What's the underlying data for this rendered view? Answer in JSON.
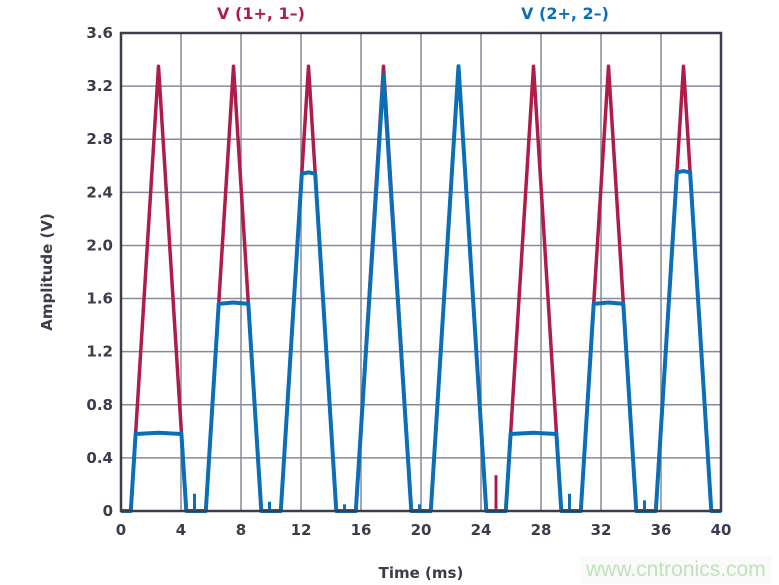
{
  "chart_data": {
    "type": "line",
    "title": "",
    "xlabel": "Time (ms)",
    "ylabel": "Amplitude (V)",
    "xlim": [
      0,
      40
    ],
    "ylim": [
      0,
      3.6
    ],
    "xticks": [
      "0",
      "4",
      "8",
      "12",
      "16",
      "20",
      "24",
      "28",
      "32",
      "36",
      "40"
    ],
    "yticks": [
      "0",
      "0.4",
      "0.8",
      "1.2",
      "1.6",
      "2.0",
      "2.4",
      "2.8",
      "3.2",
      "3.6"
    ],
    "grid": true,
    "legend_placement": "top",
    "pulse_half_width_ms": 1.85,
    "series": [
      {
        "name": "V (1+, 1–)",
        "color": "#b01c4a",
        "pulses": [
          {
            "peak_time": 2.5,
            "peak": 3.35
          },
          {
            "peak_time": 7.5,
            "peak": 3.35
          },
          {
            "peak_time": 12.5,
            "peak": 3.35
          },
          {
            "peak_time": 17.5,
            "peak": 3.35
          },
          {
            "peak_time": 22.5,
            "peak": 3.35
          },
          {
            "peak_time": 27.5,
            "peak": 3.35
          },
          {
            "peak_time": 32.5,
            "peak": 3.35
          },
          {
            "peak_time": 37.5,
            "peak": 3.35
          }
        ],
        "spikes": [
          {
            "time": 25.0,
            "value": 0.27
          }
        ]
      },
      {
        "name": "V (2+, 2–)",
        "color": "#0b6fb8",
        "pulses": [
          {
            "peak_time": 2.5,
            "peak": 3.35,
            "clip": 0.58
          },
          {
            "peak_time": 7.5,
            "peak": 3.35,
            "clip": 1.56
          },
          {
            "peak_time": 12.5,
            "peak": 3.35,
            "clip": 2.54
          },
          {
            "peak_time": 17.5,
            "peak": 3.28,
            "clip": 3.28
          },
          {
            "peak_time": 22.5,
            "peak": 3.35,
            "clip": 3.35
          },
          {
            "peak_time": 27.5,
            "peak": 3.35,
            "clip": 0.58
          },
          {
            "peak_time": 32.5,
            "peak": 3.35,
            "clip": 1.56
          },
          {
            "peak_time": 37.5,
            "peak": 3.35,
            "clip": 2.55
          }
        ],
        "spikes": [
          {
            "time": 4.9,
            "value": 0.13
          },
          {
            "time": 9.9,
            "value": 0.07
          },
          {
            "time": 14.9,
            "value": 0.05
          },
          {
            "time": 19.9,
            "value": 0.05
          },
          {
            "time": 29.9,
            "value": 0.13
          },
          {
            "time": 34.9,
            "value": 0.08
          }
        ]
      }
    ]
  },
  "watermark": "www.cntronics.com"
}
